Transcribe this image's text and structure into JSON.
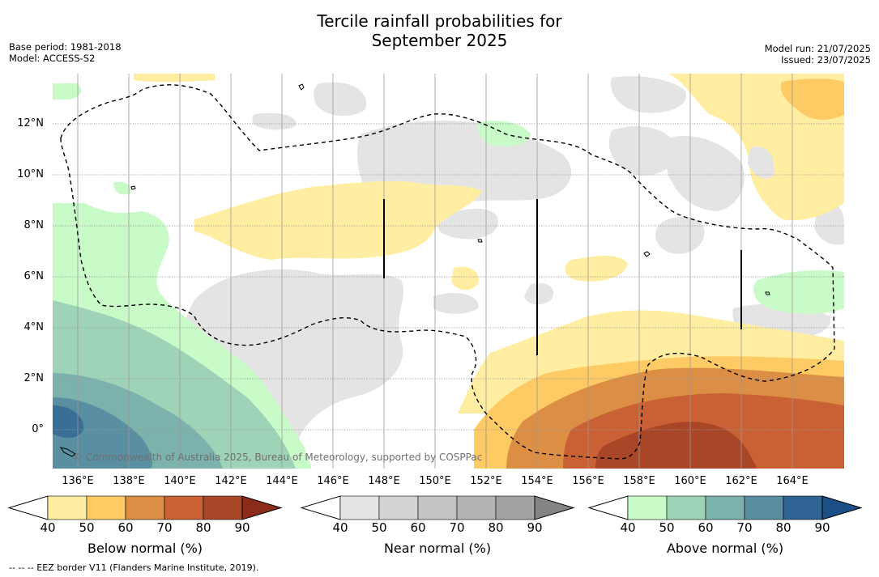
{
  "title_line1": "Tercile rainfall probabilities for",
  "title_line2": "September 2025",
  "base_period": "Base period: 1981-2018",
  "model": "Model: ACCESS-S2",
  "model_run": "Model run: 21/07/2025",
  "issued": "Issued: 23/07/2025",
  "credit": "© Commonwealth of Australia 2025, Bureau of Meteorology, supported by COSPPac",
  "eez_note": "--  --  -- EEZ border V11 (Flanders Marine Institute, 2019).",
  "x_ticks": [
    "136°E",
    "138°E",
    "140°E",
    "142°E",
    "144°E",
    "146°E",
    "148°E",
    "150°E",
    "152°E",
    "154°E",
    "156°E",
    "158°E",
    "160°E",
    "162°E",
    "164°E"
  ],
  "y_ticks": [
    "12°N",
    "10°N",
    "8°N",
    "6°N",
    "4°N",
    "2°N",
    "0°"
  ],
  "colorbars": [
    {
      "label": "Below normal (%)",
      "ticks": [
        "40",
        "50",
        "60",
        "70",
        "80",
        "90"
      ],
      "colors": [
        "#ffffff",
        "#ffeea1",
        "#fdca63",
        "#dd8e45",
        "#c96134",
        "#aa4628",
        "#8b2c1b"
      ]
    },
    {
      "label": "Near normal (%)",
      "ticks": [
        "40",
        "50",
        "60",
        "70",
        "80",
        "90"
      ],
      "colors": [
        "#ffffff",
        "#e4e4e4",
        "#d3d3d3",
        "#c4c4c4",
        "#b4b4b4",
        "#a3a3a3",
        "#848484"
      ]
    },
    {
      "label": "Above normal (%)",
      "ticks": [
        "40",
        "50",
        "60",
        "70",
        "80",
        "90"
      ],
      "colors": [
        "#ffffff",
        "#c9fbc9",
        "#9fd3b7",
        "#7cb1ac",
        "#5a8ea1",
        "#2f6394",
        "#1b4f86"
      ]
    }
  ]
}
